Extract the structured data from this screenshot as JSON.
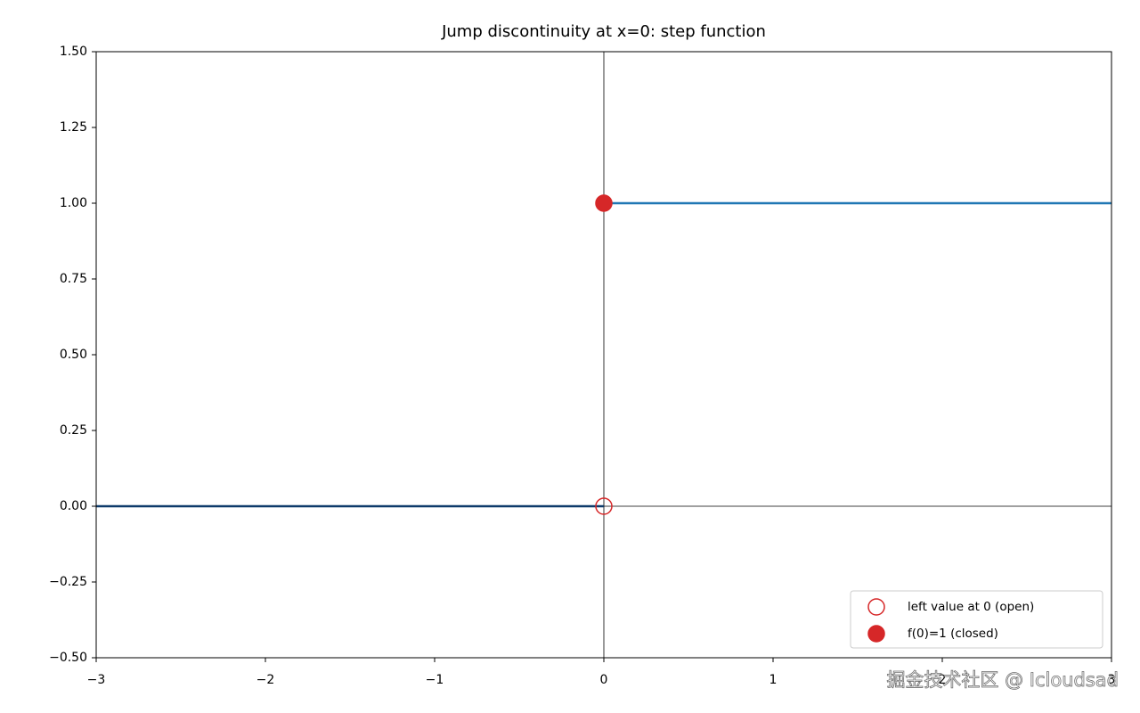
{
  "chart_data": {
    "type": "line",
    "title": "Jump discontinuity at x=0: step function",
    "xlim": [
      -3,
      3
    ],
    "ylim": [
      -0.5,
      1.5
    ],
    "xticks": [
      {
        "value": -3,
        "label": "−3"
      },
      {
        "value": -2,
        "label": "−2"
      },
      {
        "value": -1,
        "label": "−1"
      },
      0,
      1,
      2,
      3
    ],
    "yticks": [
      {
        "value": -0.5,
        "label": "−0.50"
      },
      {
        "value": -0.25,
        "label": "−0.25"
      },
      {
        "value": 0,
        "label": "0.00"
      },
      {
        "value": 0.25,
        "label": "0.25"
      },
      {
        "value": 0.5,
        "label": "0.50"
      },
      {
        "value": 0.75,
        "label": "0.75"
      },
      {
        "value": 1,
        "label": "1.00"
      },
      {
        "value": 1.25,
        "label": "1.25"
      },
      {
        "value": 1.5,
        "label": "1.50"
      }
    ],
    "reference_lines": {
      "x": 0,
      "y": 0
    },
    "series": [
      {
        "type": "line",
        "color": "#0e3a6a",
        "x": [
          -3,
          0
        ],
        "values": [
          0,
          0
        ]
      },
      {
        "type": "line",
        "color": "#1f77b4",
        "x": [
          0,
          3
        ],
        "values": [
          1,
          1
        ]
      },
      {
        "type": "scatter",
        "name": "left value at 0 (open)",
        "color": "#d62728",
        "marker": "open",
        "x": [
          0
        ],
        "values": [
          0
        ]
      },
      {
        "type": "scatter",
        "name": "f(0)=1 (closed)",
        "color": "#d62728",
        "marker": "filled",
        "x": [
          0
        ],
        "values": [
          1
        ]
      }
    ],
    "legend": "lower right",
    "watermark": "掘金技术社区 @ Icloudsad"
  }
}
